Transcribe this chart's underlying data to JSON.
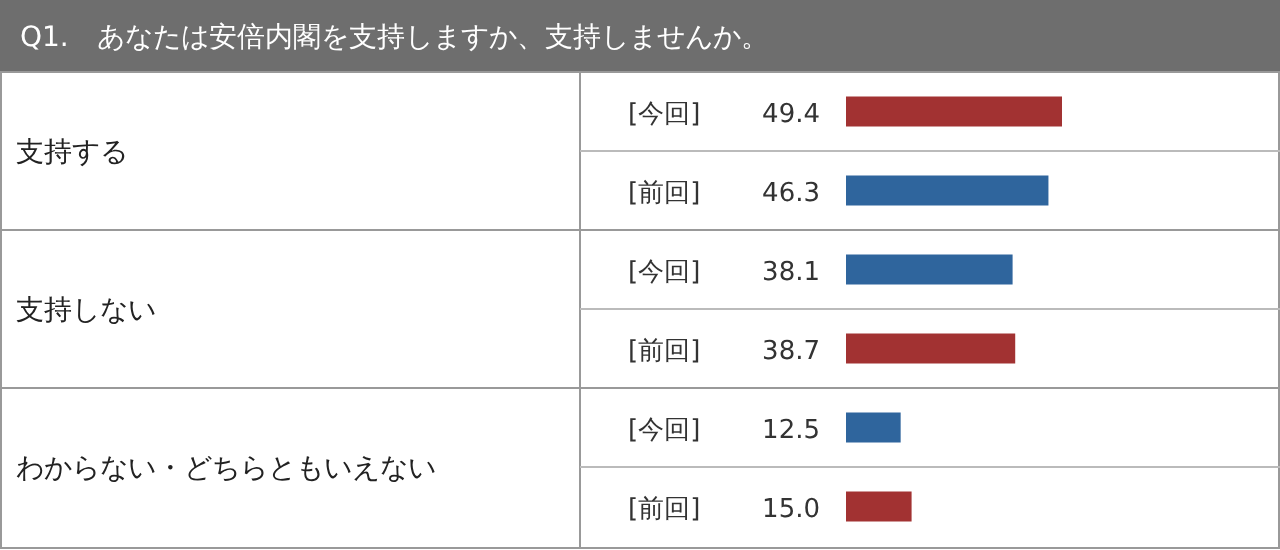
{
  "chart_data": {
    "type": "bar",
    "orientation": "horizontal",
    "title": "Q1.　あなたは安倍内閣を支持しますか、支持しませんか。",
    "categories": [
      "[今回]",
      "[前回]",
      "[今回]",
      "[前回]",
      "[今回]",
      "[前回]"
    ],
    "values": [
      49.4,
      46.3,
      38.1,
      38.7,
      12.5,
      15.0
    ],
    "value_labels": [
      "49.4",
      "46.3",
      "38.1",
      "38.7",
      "12.5",
      "15.0"
    ],
    "colors": [
      "#a23232",
      "#2f659d",
      "#2f659d",
      "#a23232",
      "#2f659d",
      "#a23232"
    ],
    "annotations": [
      "支持する",
      "支持しない",
      "わからない・どちらともいえない"
    ],
    "grid": true
  }
}
